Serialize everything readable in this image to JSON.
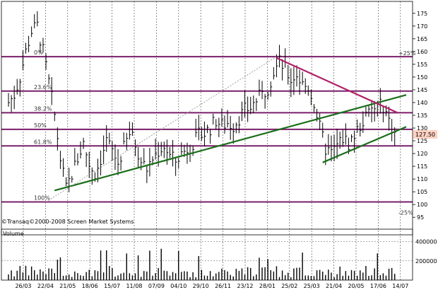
{
  "chart_data": {
    "type": "ohlc",
    "watermark": "©Transaq©2000-2008 Screen Market Systems",
    "price_axis": {
      "ticks": [
        95,
        100,
        105,
        110,
        115,
        120,
        125,
        130,
        135,
        140,
        145,
        150,
        155,
        160,
        165,
        170,
        175
      ],
      "range": [
        92,
        178
      ]
    },
    "volume_axis": {
      "label": "Volume",
      "ticks": [
        200000,
        400000
      ],
      "tick_labels": [
        "200000",
        "400000"
      ],
      "range": [
        0,
        500000
      ]
    },
    "last_price": {
      "value": 127.5,
      "label": "127.50",
      "color": "#ffd0c0"
    },
    "date_labels": [
      "26/03",
      "22/04",
      "21/05",
      "18/06",
      "15/07",
      "11/08",
      "07/09",
      "04/10",
      "29/10",
      "26/11",
      "23/12",
      "28/01",
      "25/02",
      "25/03",
      "21/04",
      "20/05",
      "17/06",
      "14/07"
    ],
    "fib_levels": [
      {
        "value": 158.0,
        "label": "0%"
      },
      {
        "value": 144.5,
        "label": "23.6%"
      },
      {
        "value": 136.0,
        "label": "38.2%"
      },
      {
        "value": 129.5,
        "label": "50%"
      },
      {
        "value": 123.0,
        "label": "61.8%"
      },
      {
        "value": 101.0,
        "label": "100%"
      }
    ],
    "ext_labels": [
      {
        "value": 158.0,
        "label": "+25%"
      },
      {
        "value": 95.5,
        "label": "-25%"
      }
    ],
    "trendlines": [
      {
        "name": "support-long",
        "color": "#1a6e1a",
        "from": [
          16,
          105.5
        ],
        "to": [
          138,
          143
        ]
      },
      {
        "name": "support-short",
        "color": "#1a6e1a",
        "from": [
          109,
          116.5
        ],
        "to": [
          138,
          130.5
        ]
      },
      {
        "name": "resistance",
        "color": "#b0206a",
        "from": [
          93,
          157.5
        ],
        "to": [
          135,
          136
        ]
      },
      {
        "name": "fib-diagonal",
        "color": "#888888",
        "dashed": true,
        "from": [
          13,
          101
        ],
        "to": [
          93,
          158
        ]
      }
    ],
    "price_path": [
      [
        0,
        140
      ],
      [
        2,
        143
      ],
      [
        4,
        150
      ],
      [
        6,
        160
      ],
      [
        8,
        168
      ],
      [
        10,
        170
      ],
      [
        12,
        160
      ],
      [
        14,
        148
      ],
      [
        16,
        135
      ],
      [
        18,
        118
      ],
      [
        20,
        106
      ],
      [
        22,
        112
      ],
      [
        24,
        118
      ],
      [
        26,
        124
      ],
      [
        28,
        116
      ],
      [
        30,
        112
      ],
      [
        32,
        118
      ],
      [
        34,
        125
      ],
      [
        36,
        121
      ],
      [
        38,
        116
      ],
      [
        40,
        122
      ],
      [
        42,
        128
      ],
      [
        44,
        124
      ],
      [
        46,
        117
      ],
      [
        48,
        114
      ],
      [
        50,
        118
      ],
      [
        52,
        121
      ],
      [
        54,
        123
      ],
      [
        56,
        119
      ],
      [
        58,
        117
      ],
      [
        60,
        120
      ],
      [
        62,
        122
      ],
      [
        64,
        124
      ],
      [
        66,
        127
      ],
      [
        68,
        128
      ],
      [
        70,
        130
      ],
      [
        72,
        133
      ],
      [
        74,
        131
      ],
      [
        76,
        132
      ],
      [
        78,
        131
      ],
      [
        80,
        134
      ],
      [
        82,
        137
      ],
      [
        84,
        138
      ],
      [
        86,
        141
      ],
      [
        88,
        143
      ],
      [
        90,
        146
      ],
      [
        92,
        152
      ],
      [
        94,
        156
      ],
      [
        96,
        153
      ],
      [
        98,
        149
      ],
      [
        100,
        151
      ],
      [
        102,
        147
      ],
      [
        104,
        146
      ],
      [
        106,
        140
      ],
      [
        108,
        130
      ],
      [
        110,
        122
      ],
      [
        112,
        120
      ],
      [
        114,
        123
      ],
      [
        116,
        126
      ],
      [
        118,
        124
      ],
      [
        120,
        127
      ],
      [
        122,
        131
      ],
      [
        124,
        134
      ],
      [
        126,
        137
      ],
      [
        128,
        138
      ],
      [
        130,
        139
      ],
      [
        132,
        133
      ],
      [
        134,
        128
      ]
    ],
    "volume_seed": 7
  }
}
